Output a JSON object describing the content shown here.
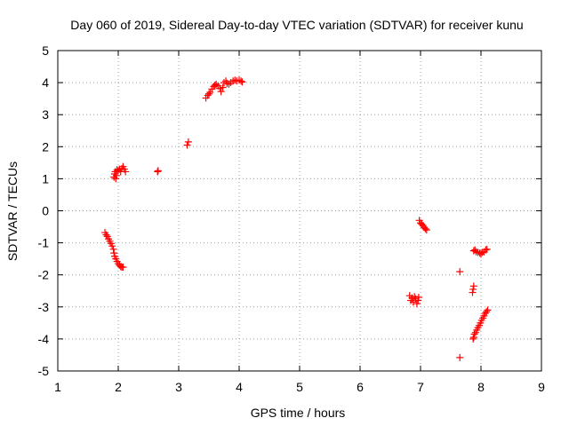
{
  "chart_data": {
    "type": "scatter",
    "title": "Day 060 of 2019, Sidereal Day-to-day VTEC variation (SDTVAR) for receiver kunu",
    "xlabel": "GPS time / hours",
    "ylabel": "SDTVAR / TECUs",
    "xlim": [
      1,
      9
    ],
    "ylim": [
      -5,
      5
    ],
    "xticks": [
      "1",
      "2",
      "3",
      "4",
      "5",
      "6",
      "7",
      "8",
      "9"
    ],
    "yticks": [
      "-5",
      "-4",
      "-3",
      "-2",
      "-1",
      "0",
      "1",
      "2",
      "3",
      "4",
      "5"
    ],
    "grid": true,
    "marker": "+",
    "marker_color": "#ff0000",
    "series": [
      {
        "points": [
          [
            1.78,
            -0.68
          ],
          [
            1.8,
            -0.75
          ],
          [
            1.82,
            -0.8
          ],
          [
            1.84,
            -0.88
          ],
          [
            1.86,
            -0.95
          ],
          [
            1.88,
            -1.02
          ],
          [
            1.9,
            -1.1
          ],
          [
            1.92,
            -1.2
          ],
          [
            1.93,
            -1.32
          ],
          [
            1.94,
            -1.42
          ],
          [
            1.96,
            -1.5
          ],
          [
            1.98,
            -1.58
          ],
          [
            2.0,
            -1.65
          ],
          [
            2.02,
            -1.7
          ],
          [
            2.04,
            -1.74
          ],
          [
            2.06,
            -1.76
          ],
          [
            2.08,
            -1.76
          ],
          [
            1.93,
            1.05
          ],
          [
            1.94,
            1.15
          ],
          [
            1.95,
            1.22
          ],
          [
            1.96,
            1.0
          ],
          [
            1.97,
            1.1
          ],
          [
            1.98,
            1.28
          ],
          [
            2.0,
            1.25
          ],
          [
            2.02,
            1.3
          ],
          [
            2.04,
            1.22
          ],
          [
            2.06,
            1.32
          ],
          [
            2.08,
            1.38
          ],
          [
            2.1,
            1.3
          ],
          [
            2.12,
            1.22
          ],
          [
            2.65,
            1.22
          ],
          [
            2.66,
            1.25
          ],
          [
            3.14,
            2.05
          ],
          [
            3.16,
            2.15
          ],
          [
            3.45,
            3.52
          ],
          [
            3.48,
            3.6
          ],
          [
            3.5,
            3.65
          ],
          [
            3.52,
            3.7
          ],
          [
            3.55,
            3.8
          ],
          [
            3.58,
            3.88
          ],
          [
            3.6,
            3.92
          ],
          [
            3.62,
            3.95
          ],
          [
            3.65,
            3.9
          ],
          [
            3.68,
            3.82
          ],
          [
            3.7,
            3.72
          ],
          [
            3.73,
            3.85
          ],
          [
            3.75,
            4.0
          ],
          [
            3.78,
            4.05
          ],
          [
            3.8,
            3.98
          ],
          [
            3.83,
            3.95
          ],
          [
            3.86,
            4.0
          ],
          [
            3.9,
            4.05
          ],
          [
            3.93,
            4.08
          ],
          [
            3.96,
            4.05
          ],
          [
            4.0,
            4.08
          ],
          [
            4.03,
            4.05
          ],
          [
            4.05,
            4.02
          ],
          [
            6.82,
            -2.65
          ],
          [
            6.84,
            -2.8
          ],
          [
            6.86,
            -2.72
          ],
          [
            6.88,
            -2.85
          ],
          [
            6.9,
            -2.68
          ],
          [
            6.92,
            -2.75
          ],
          [
            6.94,
            -2.9
          ],
          [
            6.96,
            -2.8
          ],
          [
            6.97,
            -2.7
          ],
          [
            6.98,
            -0.3
          ],
          [
            7.0,
            -0.38
          ],
          [
            7.02,
            -0.42
          ],
          [
            7.04,
            -0.46
          ],
          [
            7.06,
            -0.52
          ],
          [
            7.08,
            -0.56
          ],
          [
            7.1,
            -0.6
          ],
          [
            7.65,
            -1.9
          ],
          [
            7.65,
            -4.58
          ],
          [
            7.86,
            -2.55
          ],
          [
            7.87,
            -2.45
          ],
          [
            7.88,
            -2.35
          ],
          [
            7.88,
            -1.25
          ],
          [
            7.9,
            -1.22
          ],
          [
            7.92,
            -1.28
          ],
          [
            7.95,
            -1.3
          ],
          [
            7.98,
            -1.32
          ],
          [
            8.0,
            -1.35
          ],
          [
            8.02,
            -1.3
          ],
          [
            8.05,
            -1.28
          ],
          [
            8.08,
            -1.22
          ],
          [
            8.1,
            -1.2
          ],
          [
            7.87,
            -4.0
          ],
          [
            7.88,
            -3.95
          ],
          [
            7.89,
            -3.85
          ],
          [
            7.91,
            -3.8
          ],
          [
            7.93,
            -3.72
          ],
          [
            7.95,
            -3.65
          ],
          [
            7.97,
            -3.58
          ],
          [
            7.99,
            -3.5
          ],
          [
            8.01,
            -3.42
          ],
          [
            8.03,
            -3.35
          ],
          [
            8.05,
            -3.28
          ],
          [
            8.07,
            -3.2
          ],
          [
            8.09,
            -3.15
          ],
          [
            8.11,
            -3.1
          ]
        ]
      }
    ]
  }
}
